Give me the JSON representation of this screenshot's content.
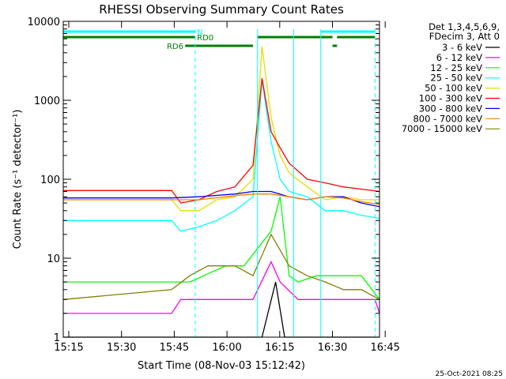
{
  "chart_data": {
    "type": "line",
    "title": "RHESSI Observing Summary Count Rates",
    "xlabel": "Start Time (08-Nov-03 15:12:42)",
    "ylabel": "Count Rate (s⁻¹ detector⁻¹)",
    "y_scale": "log",
    "ylim": [
      1,
      10000
    ],
    "xlim_minutes": [
      15.0,
      50.0
    ],
    "x_ticks": [
      "15:15",
      "15:30",
      "15:45",
      "16:00",
      "16:15",
      "16:30",
      "16:45"
    ],
    "y_ticks": [
      "1",
      "10",
      "100",
      "1000",
      "10000"
    ],
    "grid": false,
    "legend_position": "right",
    "legend_header": [
      "Det 1,3,4,5,6,9,",
      "FDecim 3, Att 0"
    ],
    "series": [
      {
        "name": "3 - 6 keV",
        "color": "#000000",
        "points": [
          [
            15,
            1
          ],
          [
            20,
            1
          ],
          [
            25,
            1
          ],
          [
            30,
            1
          ],
          [
            35,
            1
          ],
          [
            37,
            1
          ],
          [
            38.5,
            5
          ],
          [
            39.5,
            1
          ],
          [
            42,
            1
          ],
          [
            44,
            1
          ],
          [
            46,
            1
          ],
          [
            48,
            1
          ],
          [
            50,
            1
          ]
        ]
      },
      {
        "name": "6 - 12 keV",
        "color": "#ff00ff",
        "points": [
          [
            15,
            2
          ],
          [
            27,
            2
          ],
          [
            28,
            3
          ],
          [
            34,
            3
          ],
          [
            36,
            3
          ],
          [
            38,
            9
          ],
          [
            39,
            5
          ],
          [
            41,
            3
          ],
          [
            44,
            3
          ],
          [
            48,
            3
          ],
          [
            49.5,
            3
          ],
          [
            50,
            2
          ]
        ]
      },
      {
        "name": "12 - 25 keV",
        "color": "#00ff00",
        "points": [
          [
            15,
            5
          ],
          [
            27,
            5
          ],
          [
            29,
            5
          ],
          [
            33,
            8
          ],
          [
            35,
            8
          ],
          [
            38,
            22
          ],
          [
            39,
            60
          ],
          [
            40,
            6
          ],
          [
            41,
            5
          ],
          [
            43,
            6
          ],
          [
            45,
            6
          ],
          [
            47,
            6
          ],
          [
            48,
            6
          ],
          [
            50,
            3
          ]
        ]
      },
      {
        "name": "25 - 50 keV",
        "color": "#00ffff",
        "points": [
          [
            15,
            30
          ],
          [
            27,
            30
          ],
          [
            28,
            22
          ],
          [
            30,
            25
          ],
          [
            32,
            30
          ],
          [
            34,
            40
          ],
          [
            36,
            60
          ],
          [
            37,
            1800
          ],
          [
            38,
            300
          ],
          [
            39,
            100
          ],
          [
            40,
            70
          ],
          [
            42,
            60
          ],
          [
            44,
            40
          ],
          [
            46,
            40
          ],
          [
            48,
            35
          ],
          [
            50,
            32
          ]
        ]
      },
      {
        "name": "50 - 100 keV",
        "color": "#e0e000",
        "points": [
          [
            15,
            55
          ],
          [
            27,
            55
          ],
          [
            28,
            40
          ],
          [
            30,
            40
          ],
          [
            32,
            55
          ],
          [
            34,
            60
          ],
          [
            36,
            100
          ],
          [
            37,
            4800
          ],
          [
            38,
            600
          ],
          [
            39,
            200
          ],
          [
            40,
            120
          ],
          [
            42,
            80
          ],
          [
            44,
            55
          ],
          [
            46,
            60
          ],
          [
            48,
            55
          ],
          [
            50,
            55
          ]
        ]
      },
      {
        "name": "100 - 300 keV",
        "color": "#ff0000",
        "points": [
          [
            15,
            72
          ],
          [
            27,
            72
          ],
          [
            28,
            50
          ],
          [
            30,
            55
          ],
          [
            32,
            70
          ],
          [
            34,
            80
          ],
          [
            36,
            150
          ],
          [
            37,
            1900
          ],
          [
            38,
            400
          ],
          [
            39,
            250
          ],
          [
            40,
            160
          ],
          [
            42,
            100
          ],
          [
            44,
            90
          ],
          [
            46,
            80
          ],
          [
            48,
            75
          ],
          [
            50,
            70
          ]
        ]
      },
      {
        "name": "300 - 800 keV",
        "color": "#0000ff",
        "points": [
          [
            15,
            58
          ],
          [
            27,
            58
          ],
          [
            30,
            60
          ],
          [
            34,
            65
          ],
          [
            36,
            70
          ],
          [
            38,
            70
          ],
          [
            40,
            60
          ],
          [
            42,
            55
          ],
          [
            44,
            60
          ],
          [
            46,
            60
          ],
          [
            48,
            50
          ],
          [
            50,
            45
          ]
        ]
      },
      {
        "name": "800 - 7000 keV",
        "color": "#ff8000",
        "points": [
          [
            15,
            55
          ],
          [
            27,
            55
          ],
          [
            30,
            55
          ],
          [
            34,
            62
          ],
          [
            36,
            65
          ],
          [
            38,
            65
          ],
          [
            40,
            60
          ],
          [
            42,
            55
          ],
          [
            44,
            60
          ],
          [
            46,
            58
          ],
          [
            48,
            52
          ],
          [
            50,
            48
          ]
        ]
      },
      {
        "name": "7000 - 15000 keV",
        "color": "#808000",
        "points": [
          [
            15,
            3
          ],
          [
            27,
            4
          ],
          [
            29,
            6
          ],
          [
            31,
            8
          ],
          [
            34,
            8
          ],
          [
            36,
            6
          ],
          [
            38,
            20
          ],
          [
            40,
            8
          ],
          [
            42,
            6
          ],
          [
            44,
            5
          ],
          [
            46,
            4
          ],
          [
            48,
            4
          ],
          [
            50,
            3
          ]
        ]
      }
    ],
    "flags": [
      {
        "name": "N",
        "color": "#00ffff"
      },
      {
        "name": "RD0",
        "color": "#008000"
      },
      {
        "name": "RD6",
        "color": "#008000"
      }
    ],
    "timestamp": "25-Oct-2021 08:25"
  }
}
